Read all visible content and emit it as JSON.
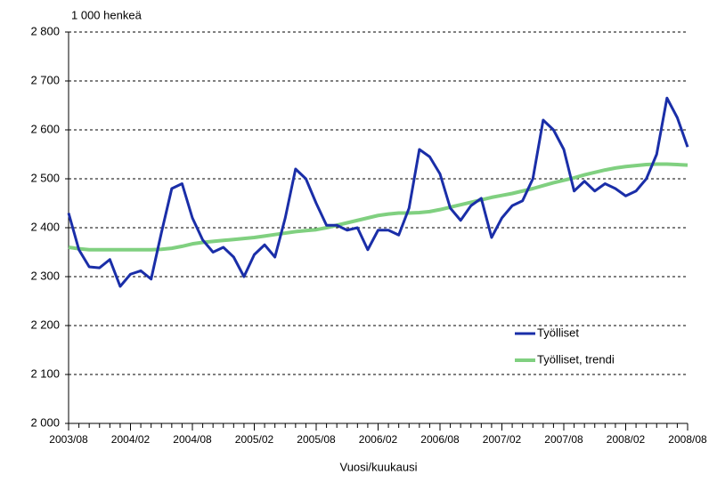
{
  "chart_data": {
    "type": "line",
    "y_label": "1 000 henkeä",
    "x_label": "Vuosi/kuukausi",
    "categories": [
      "2003/08",
      null,
      null,
      null,
      null,
      null,
      "2004/02",
      null,
      null,
      null,
      null,
      null,
      "2004/08",
      null,
      null,
      null,
      null,
      null,
      "2005/02",
      null,
      null,
      null,
      null,
      null,
      "2005/08",
      null,
      null,
      null,
      null,
      null,
      "2006/02",
      null,
      null,
      null,
      null,
      null,
      "2006/08",
      null,
      null,
      null,
      null,
      null,
      "2007/02",
      null,
      null,
      null,
      null,
      null,
      "2007/08",
      null,
      null,
      null,
      null,
      null,
      "2008/02",
      null,
      null,
      null,
      null,
      null,
      "2008/08"
    ],
    "series": [
      {
        "name": "Työlliset",
        "color": "#1a2ea8",
        "values": [
          2430,
          2355,
          2320,
          2318,
          2335,
          2280,
          2305,
          2312,
          2295,
          2390,
          2480,
          2490,
          2420,
          2375,
          2350,
          2360,
          2340,
          2300,
          2345,
          2365,
          2340,
          2420,
          2520,
          2500,
          2450,
          2405,
          2405,
          2395,
          2400,
          2355,
          2395,
          2395,
          2385,
          2440,
          2560,
          2545,
          2510,
          2440,
          2415,
          2445,
          2460,
          2380,
          2420,
          2445,
          2455,
          2500,
          2620,
          2600,
          2560,
          2475,
          2495,
          2475,
          2490,
          2480,
          2465,
          2475,
          2500,
          2550,
          2665,
          2625,
          2565
        ]
      },
      {
        "name": "Työlliset, trendi",
        "color": "#80d080",
        "values": [
          2360,
          2357,
          2355,
          2355,
          2355,
          2355,
          2355,
          2355,
          2355,
          2356,
          2358,
          2362,
          2367,
          2370,
          2372,
          2374,
          2376,
          2378,
          2380,
          2383,
          2386,
          2389,
          2392,
          2394,
          2396,
          2400,
          2405,
          2410,
          2415,
          2420,
          2425,
          2428,
          2430,
          2430,
          2431,
          2433,
          2437,
          2442,
          2447,
          2452,
          2457,
          2462,
          2466,
          2470,
          2475,
          2480,
          2486,
          2492,
          2497,
          2502,
          2508,
          2513,
          2518,
          2522,
          2525,
          2527,
          2529,
          2530,
          2530,
          2529,
          2528
        ]
      }
    ],
    "ylim": [
      2000,
      2800
    ],
    "yticks": [
      {
        "value": 2000,
        "label": "2 000"
      },
      {
        "value": 2100,
        "label": "2 100"
      },
      {
        "value": 2200,
        "label": "2 200"
      },
      {
        "value": 2300,
        "label": "2 300"
      },
      {
        "value": 2400,
        "label": "2 400"
      },
      {
        "value": 2500,
        "label": "2 500"
      },
      {
        "value": 2600,
        "label": "2 600"
      },
      {
        "value": 2700,
        "label": "2 700"
      },
      {
        "value": 2800,
        "label": "2 800"
      }
    ],
    "grid": true,
    "legend": "lower-right"
  }
}
